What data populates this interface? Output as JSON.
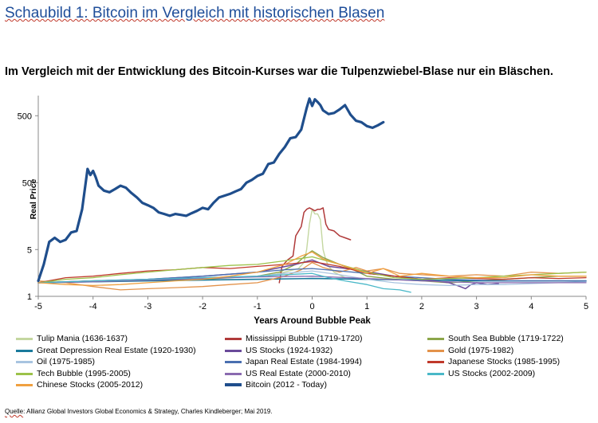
{
  "page": {
    "title": "Schaubild 1: Bitcoin im Vergleich mit historischen Blasen",
    "subtitle": "Im Vergleich mit der Entwicklung des Bitcoin-Kurses war die Tulpenzwiebel-Blase nur ein Bläschen.",
    "source_prefix": "Quelle",
    "source_rest": ": Allianz Global Investors Global Economics & Strategy, Charles Kindleberger; Mai 2019."
  },
  "chart_data": {
    "type": "line",
    "xlabel": "Years Around Bubble Peak",
    "ylabel": "Real Price",
    "xlim": [
      -5,
      5
    ],
    "ylim": [
      1,
      1000
    ],
    "yscale": "log",
    "xticks": [
      "-5",
      "-4",
      "-3",
      "-2",
      "-1",
      "0",
      "1",
      "2",
      "3",
      "4",
      "5"
    ],
    "yticks": [
      "1",
      "5",
      "50",
      "500"
    ],
    "grid": false,
    "legend_position": "bottom",
    "series": [
      {
        "name": "Tulip Mania (1636-1637)",
        "color": "#c4d7a0",
        "width": 1.4,
        "x": [
          -0.8,
          -0.5,
          -0.25,
          -0.15,
          -0.1,
          -0.05,
          0,
          0.05,
          0.1,
          0.15,
          0.2,
          0.25,
          0.3,
          0.4,
          0.6
        ],
        "y": [
          2.0,
          2.3,
          2.6,
          3.2,
          5,
          12,
          20,
          17,
          17,
          14,
          5,
          3.5,
          2.8,
          2.3,
          1.9
        ]
      },
      {
        "name": "Mississippi Bubble (1719-1720)",
        "color": "#b03a3a",
        "width": 1.5,
        "x": [
          -0.6,
          -0.55,
          -0.45,
          -0.35,
          -0.3,
          -0.2,
          -0.15,
          -0.1,
          -0.05,
          0,
          0.05,
          0.1,
          0.15,
          0.2,
          0.25,
          0.3,
          0.4,
          0.5,
          0.6,
          0.7
        ],
        "y": [
          1.6,
          2.8,
          3.5,
          4,
          8,
          11,
          18,
          20,
          21,
          20,
          19,
          20,
          20,
          21,
          12,
          10,
          9.5,
          8,
          7.5,
          7
        ]
      },
      {
        "name": "South Sea Bubble (1719-1722)",
        "color": "#8ca64a",
        "width": 1.4,
        "x": [
          -5,
          -4,
          -3,
          -2,
          -1,
          -0.6,
          -0.3,
          -0.1,
          0,
          0.2,
          0.5,
          0.8,
          1.0,
          1.5,
          2.0,
          2.5,
          3,
          3.5,
          4,
          4.5,
          5
        ],
        "y": [
          1.6,
          1.7,
          1.7,
          1.8,
          2.0,
          2.3,
          3.0,
          4.2,
          4.8,
          3.8,
          3.0,
          2.4,
          2.0,
          1.8,
          1.7,
          1.6,
          1.7,
          1.8,
          1.9,
          2.0,
          2.0
        ]
      },
      {
        "name": "Great Depression Real Estate (1920-1930)",
        "color": "#1a7a9c",
        "width": 1.6,
        "x": [
          -5,
          -4,
          -3,
          -2,
          -1,
          0,
          1,
          2,
          3,
          4,
          5
        ],
        "y": [
          1.6,
          1.65,
          1.7,
          1.75,
          1.8,
          1.85,
          1.8,
          1.75,
          1.7,
          1.7,
          1.7
        ]
      },
      {
        "name": "US Stocks (1924-1932)",
        "color": "#6a4a9a",
        "width": 1.5,
        "x": [
          -5,
          -4,
          -3,
          -2,
          -1,
          -0.3,
          0,
          0.3,
          0.8,
          1.5,
          2.0,
          2.5,
          2.7,
          2.8,
          2.9,
          3.0,
          3.2,
          3.4
        ],
        "y": [
          1.6,
          1.7,
          1.8,
          2.0,
          2.3,
          3.0,
          3.5,
          2.8,
          2.5,
          2.0,
          1.8,
          1.6,
          1.4,
          1.3,
          1.5,
          1.6,
          1.5,
          1.55
        ]
      },
      {
        "name": "Gold (1975-1982)",
        "color": "#e3924a",
        "width": 1.3,
        "x": [
          -5,
          -4.5,
          -4,
          -3.5,
          -3,
          -2.5,
          -2,
          -1.5,
          -1,
          -0.5,
          -0.2,
          0,
          0.2,
          0.5,
          0.8,
          1.0,
          1.3,
          1.6,
          2.0,
          2.5,
          3,
          3.5,
          4,
          4.5,
          5
        ],
        "y": [
          1.7,
          1.6,
          1.4,
          1.25,
          1.3,
          1.35,
          1.4,
          1.5,
          1.6,
          2.0,
          2.5,
          3.2,
          2.7,
          2.3,
          2.7,
          2.4,
          2.6,
          2.2,
          2.1,
          2.0,
          2.1,
          2.0,
          2.3,
          2.2,
          2.3
        ]
      },
      {
        "name": "Oil (1975-1985)",
        "color": "#a8c4e0",
        "width": 1.3,
        "x": [
          -5,
          -4,
          -3,
          -2,
          -1,
          -0.5,
          0,
          0.5,
          1,
          1.5,
          2,
          2.5,
          3,
          3.5,
          4,
          4.5,
          5
        ],
        "y": [
          1.6,
          1.7,
          1.8,
          1.9,
          2.0,
          2.2,
          2.4,
          2.1,
          1.8,
          1.6,
          1.5,
          1.45,
          1.5,
          1.5,
          1.55,
          1.6,
          1.65
        ]
      },
      {
        "name": "Japan Real Estate (1984-1994)",
        "color": "#4a6fb0",
        "width": 1.3,
        "x": [
          -5,
          -4,
          -3,
          -2,
          -1,
          -0.5,
          0,
          0.5,
          1,
          1.5,
          2,
          2.5,
          3,
          3.5,
          4,
          4.5,
          5
        ],
        "y": [
          1.6,
          1.7,
          1.8,
          2.0,
          2.3,
          2.5,
          2.6,
          2.4,
          2.2,
          2.0,
          1.9,
          1.8,
          1.75,
          1.7,
          1.7,
          1.7,
          1.7
        ]
      },
      {
        "name": "Japanese Stocks (1985-1995)",
        "color": "#c0392b",
        "width": 1.3,
        "x": [
          -5,
          -4.5,
          -4,
          -3.5,
          -3,
          -2.5,
          -2,
          -1.5,
          -1,
          -0.5,
          0,
          0.5,
          1,
          1.5,
          2,
          2.5,
          3,
          3.5,
          4,
          4.5,
          5
        ],
        "y": [
          1.6,
          1.9,
          2.0,
          2.2,
          2.4,
          2.5,
          2.7,
          2.6,
          2.8,
          3.0,
          3.3,
          2.8,
          2.2,
          2.0,
          1.8,
          1.9,
          1.85,
          1.8,
          1.9,
          1.85,
          1.9
        ]
      },
      {
        "name": "Tech Bubble (1995-2005)",
        "color": "#9cc24a",
        "width": 1.3,
        "x": [
          -5,
          -4.5,
          -4,
          -3.5,
          -3,
          -2.5,
          -2,
          -1.5,
          -1,
          -0.5,
          0,
          0.5,
          1,
          1.5,
          2,
          2.5,
          3,
          3.5,
          4,
          4.5,
          5
        ],
        "y": [
          1.6,
          1.8,
          1.9,
          2.1,
          2.3,
          2.5,
          2.7,
          2.9,
          3.0,
          3.4,
          3.9,
          3.0,
          2.3,
          1.9,
          1.8,
          1.85,
          1.9,
          2.0,
          2.1,
          2.2,
          2.3
        ]
      },
      {
        "name": "US Real Estate (2000-2010)",
        "color": "#8a6ab0",
        "width": 1.3,
        "x": [
          -5,
          -4,
          -3,
          -2,
          -1,
          0,
          1,
          2,
          3,
          4,
          5
        ],
        "y": [
          1.6,
          1.65,
          1.75,
          1.85,
          1.95,
          2.0,
          1.85,
          1.7,
          1.6,
          1.6,
          1.6
        ]
      },
      {
        "name": "US Stocks (2002-2009)",
        "color": "#4ab8c8",
        "width": 1.3,
        "x": [
          -5,
          -4,
          -3,
          -2,
          -1,
          -0.5,
          0,
          0.3,
          0.6,
          1.0,
          1.3,
          1.6,
          1.8
        ],
        "y": [
          1.6,
          1.7,
          1.8,
          1.9,
          2.0,
          2.1,
          2.2,
          1.9,
          1.7,
          1.5,
          1.3,
          1.25,
          1.15
        ]
      },
      {
        "name": "Chinese Stocks (2005-2012)",
        "color": "#f0a040",
        "width": 1.3,
        "x": [
          -5,
          -4.5,
          -4,
          -3.5,
          -3,
          -2.5,
          -2,
          -1.5,
          -1,
          -0.5,
          -0.2,
          0,
          0.2,
          0.5,
          0.8,
          1.0,
          1.3,
          1.6,
          2.0,
          2.5,
          3,
          3.5,
          4,
          4.5,
          5
        ],
        "y": [
          1.6,
          1.5,
          1.45,
          1.5,
          1.6,
          1.7,
          1.8,
          2.0,
          2.3,
          3.0,
          4.0,
          4.6,
          3.6,
          3.0,
          2.5,
          2.2,
          2.6,
          2.0,
          2.2,
          2.0,
          1.9,
          1.9,
          2.1,
          2.0,
          2.0
        ]
      },
      {
        "name": "Bitcoin (2012 - Today)",
        "color": "#1f4e8c",
        "width": 3.2,
        "x": [
          -5,
          -4.9,
          -4.8,
          -4.7,
          -4.6,
          -4.5,
          -4.4,
          -4.3,
          -4.2,
          -4.1,
          -4.05,
          -4.0,
          -3.95,
          -3.9,
          -3.8,
          -3.7,
          -3.6,
          -3.5,
          -3.4,
          -3.3,
          -3.2,
          -3.1,
          -3.0,
          -2.9,
          -2.8,
          -2.7,
          -2.6,
          -2.5,
          -2.4,
          -2.3,
          -2.2,
          -2.1,
          -2.0,
          -1.9,
          -1.8,
          -1.7,
          -1.6,
          -1.5,
          -1.4,
          -1.3,
          -1.2,
          -1.1,
          -1.0,
          -0.9,
          -0.8,
          -0.7,
          -0.6,
          -0.5,
          -0.4,
          -0.3,
          -0.2,
          -0.1,
          -0.05,
          0.0,
          0.05,
          0.1,
          0.15,
          0.2,
          0.3,
          0.4,
          0.5,
          0.6,
          0.7,
          0.8,
          0.9,
          1.0,
          1.1,
          1.2,
          1.3
        ],
        "y": [
          1.7,
          3.0,
          6.5,
          7.5,
          6.5,
          7.0,
          9.0,
          9.5,
          20,
          80,
          65,
          75,
          60,
          45,
          38,
          36,
          40,
          45,
          42,
          35,
          30,
          25,
          23,
          21,
          18,
          17,
          16,
          17,
          16.5,
          16,
          17.5,
          19,
          21,
          20,
          25,
          30,
          32,
          34,
          37,
          40,
          50,
          55,
          63,
          68,
          95,
          100,
          135,
          170,
          230,
          240,
          310,
          650,
          900,
          700,
          880,
          800,
          720,
          600,
          530,
          550,
          620,
          720,
          520,
          420,
          400,
          350,
          330,
          360,
          400
        ]
      }
    ]
  }
}
